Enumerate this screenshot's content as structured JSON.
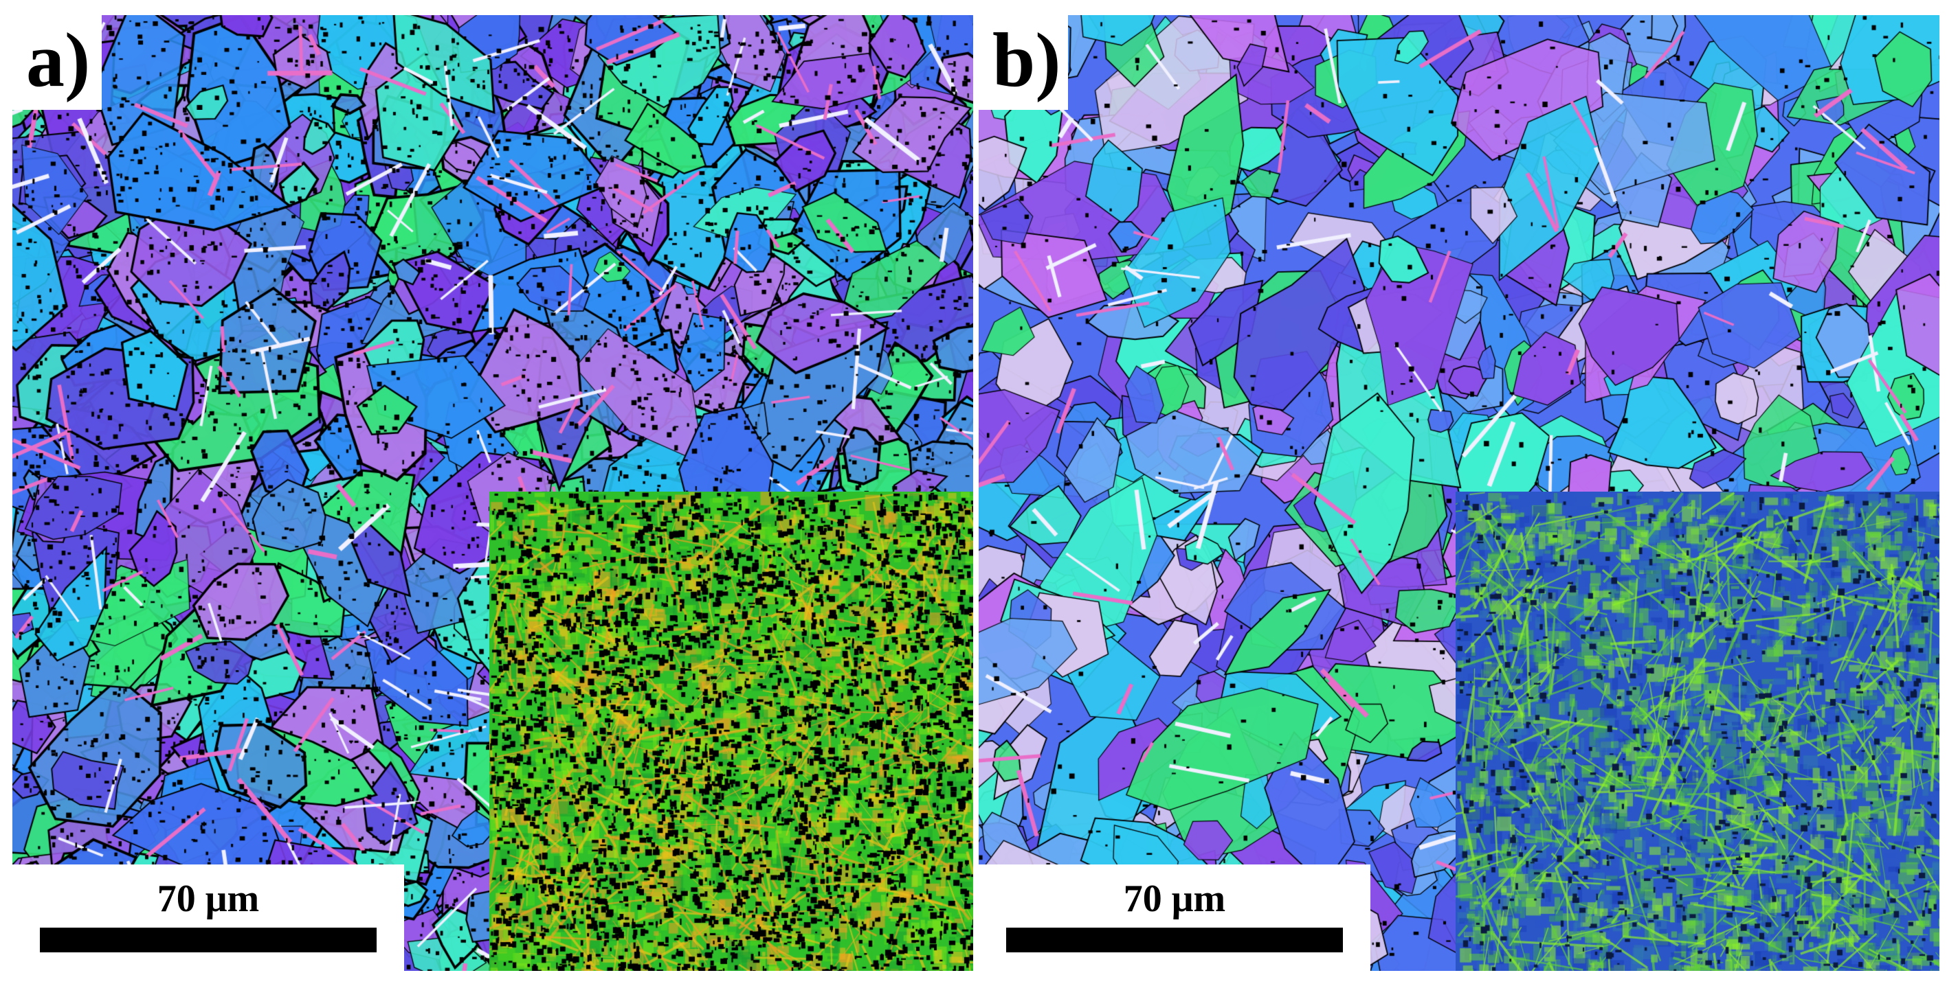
{
  "figure": {
    "panels": [
      {
        "label": "a)",
        "scale_bar_text": "70 μm",
        "map_palette": [
          "#5b4fe0",
          "#7a3de6",
          "#3f6ef0",
          "#2f8ff5",
          "#27c2f0",
          "#3fe8c8",
          "#35e57a",
          "#9a5ce8",
          "#b07ae8",
          "#4c8fe0"
        ],
        "boundary_color": "#000000",
        "inset_palette": [
          "#1e9e2e",
          "#2fbf2a",
          "#4fd61c",
          "#7ee51a",
          "#e8c21a",
          "#f0a020"
        ],
        "inset_dark": "#000000"
      },
      {
        "label": "b)",
        "scale_bar_text": "70 μm",
        "map_palette": [
          "#4f6ef0",
          "#3f8ff5",
          "#5a4fe6",
          "#8a4fe8",
          "#c06ef0",
          "#30c8f0",
          "#3ff0d0",
          "#38e080",
          "#6ea8f5",
          "#d8c8f0"
        ],
        "boundary_color": "#000000",
        "inset_palette": [
          "#1c3fb8",
          "#2a56c8",
          "#2f78b0",
          "#3aa060",
          "#5fd03a",
          "#8ef02a"
        ],
        "inset_dark": "#0a1a40"
      }
    ]
  }
}
